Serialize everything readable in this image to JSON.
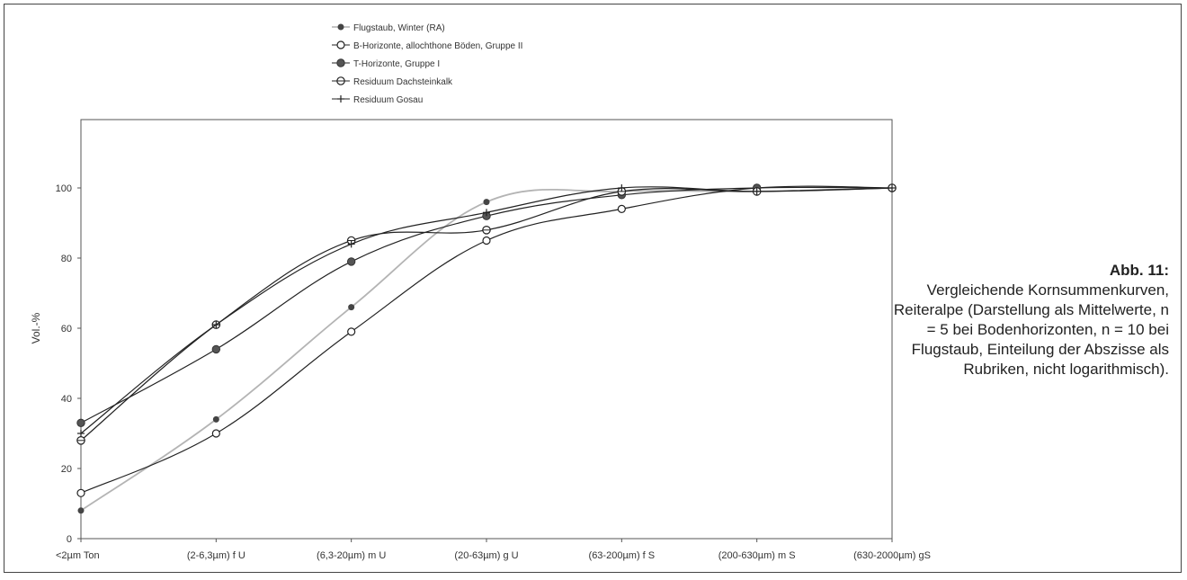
{
  "chart_data": {
    "type": "line",
    "categories": [
      "<2µm Ton",
      "(2-6,3µm) f U",
      "(6,3-20µm) m U",
      "(20-63µm) g U",
      "(63-200µm) f S",
      "(200-630µm) m S",
      "(630-2000µm) gS"
    ],
    "ylabel": "Vol.-%",
    "ylim": [
      0,
      100
    ],
    "yticks": [
      0,
      20,
      40,
      60,
      80,
      100
    ],
    "grid": false,
    "legend_position": "top-center",
    "series": [
      {
        "name": "Flugstaub, Winter (RA)",
        "marker": "filled-circle",
        "color": "#b4b4b4",
        "values": [
          8,
          34,
          66,
          96,
          99,
          99,
          100
        ]
      },
      {
        "name": "B-Horizonte, allochthone Böden, Gruppe II",
        "marker": "open-circle",
        "color": "#222222",
        "values": [
          13,
          30,
          59,
          85,
          94,
          100,
          100
        ]
      },
      {
        "name": "T-Horizonte, Gruppe I",
        "marker": "filled-square",
        "color": "#222222",
        "values": [
          33,
          54,
          79,
          92,
          98,
          100,
          100
        ]
      },
      {
        "name": "Residuum Dachsteinkalk",
        "marker": "open-circle-bar",
        "color": "#222222",
        "values": [
          28,
          61,
          85,
          88,
          99,
          99,
          100
        ]
      },
      {
        "name": "Residuum Gosau",
        "marker": "plus",
        "color": "#222222",
        "values": [
          30,
          61,
          84,
          93,
          100,
          99,
          100
        ]
      }
    ]
  },
  "caption": {
    "label": "Abb. 11:",
    "text": "Vergleichende Kornsummenkurven, Reiteralpe (Darstellung als Mittelwerte, n = 5 bei Bodenhorizonten, n = 10 bei Flugstaub, Einteilung der Abszisse als Rubriken, nicht logarithmisch)."
  }
}
